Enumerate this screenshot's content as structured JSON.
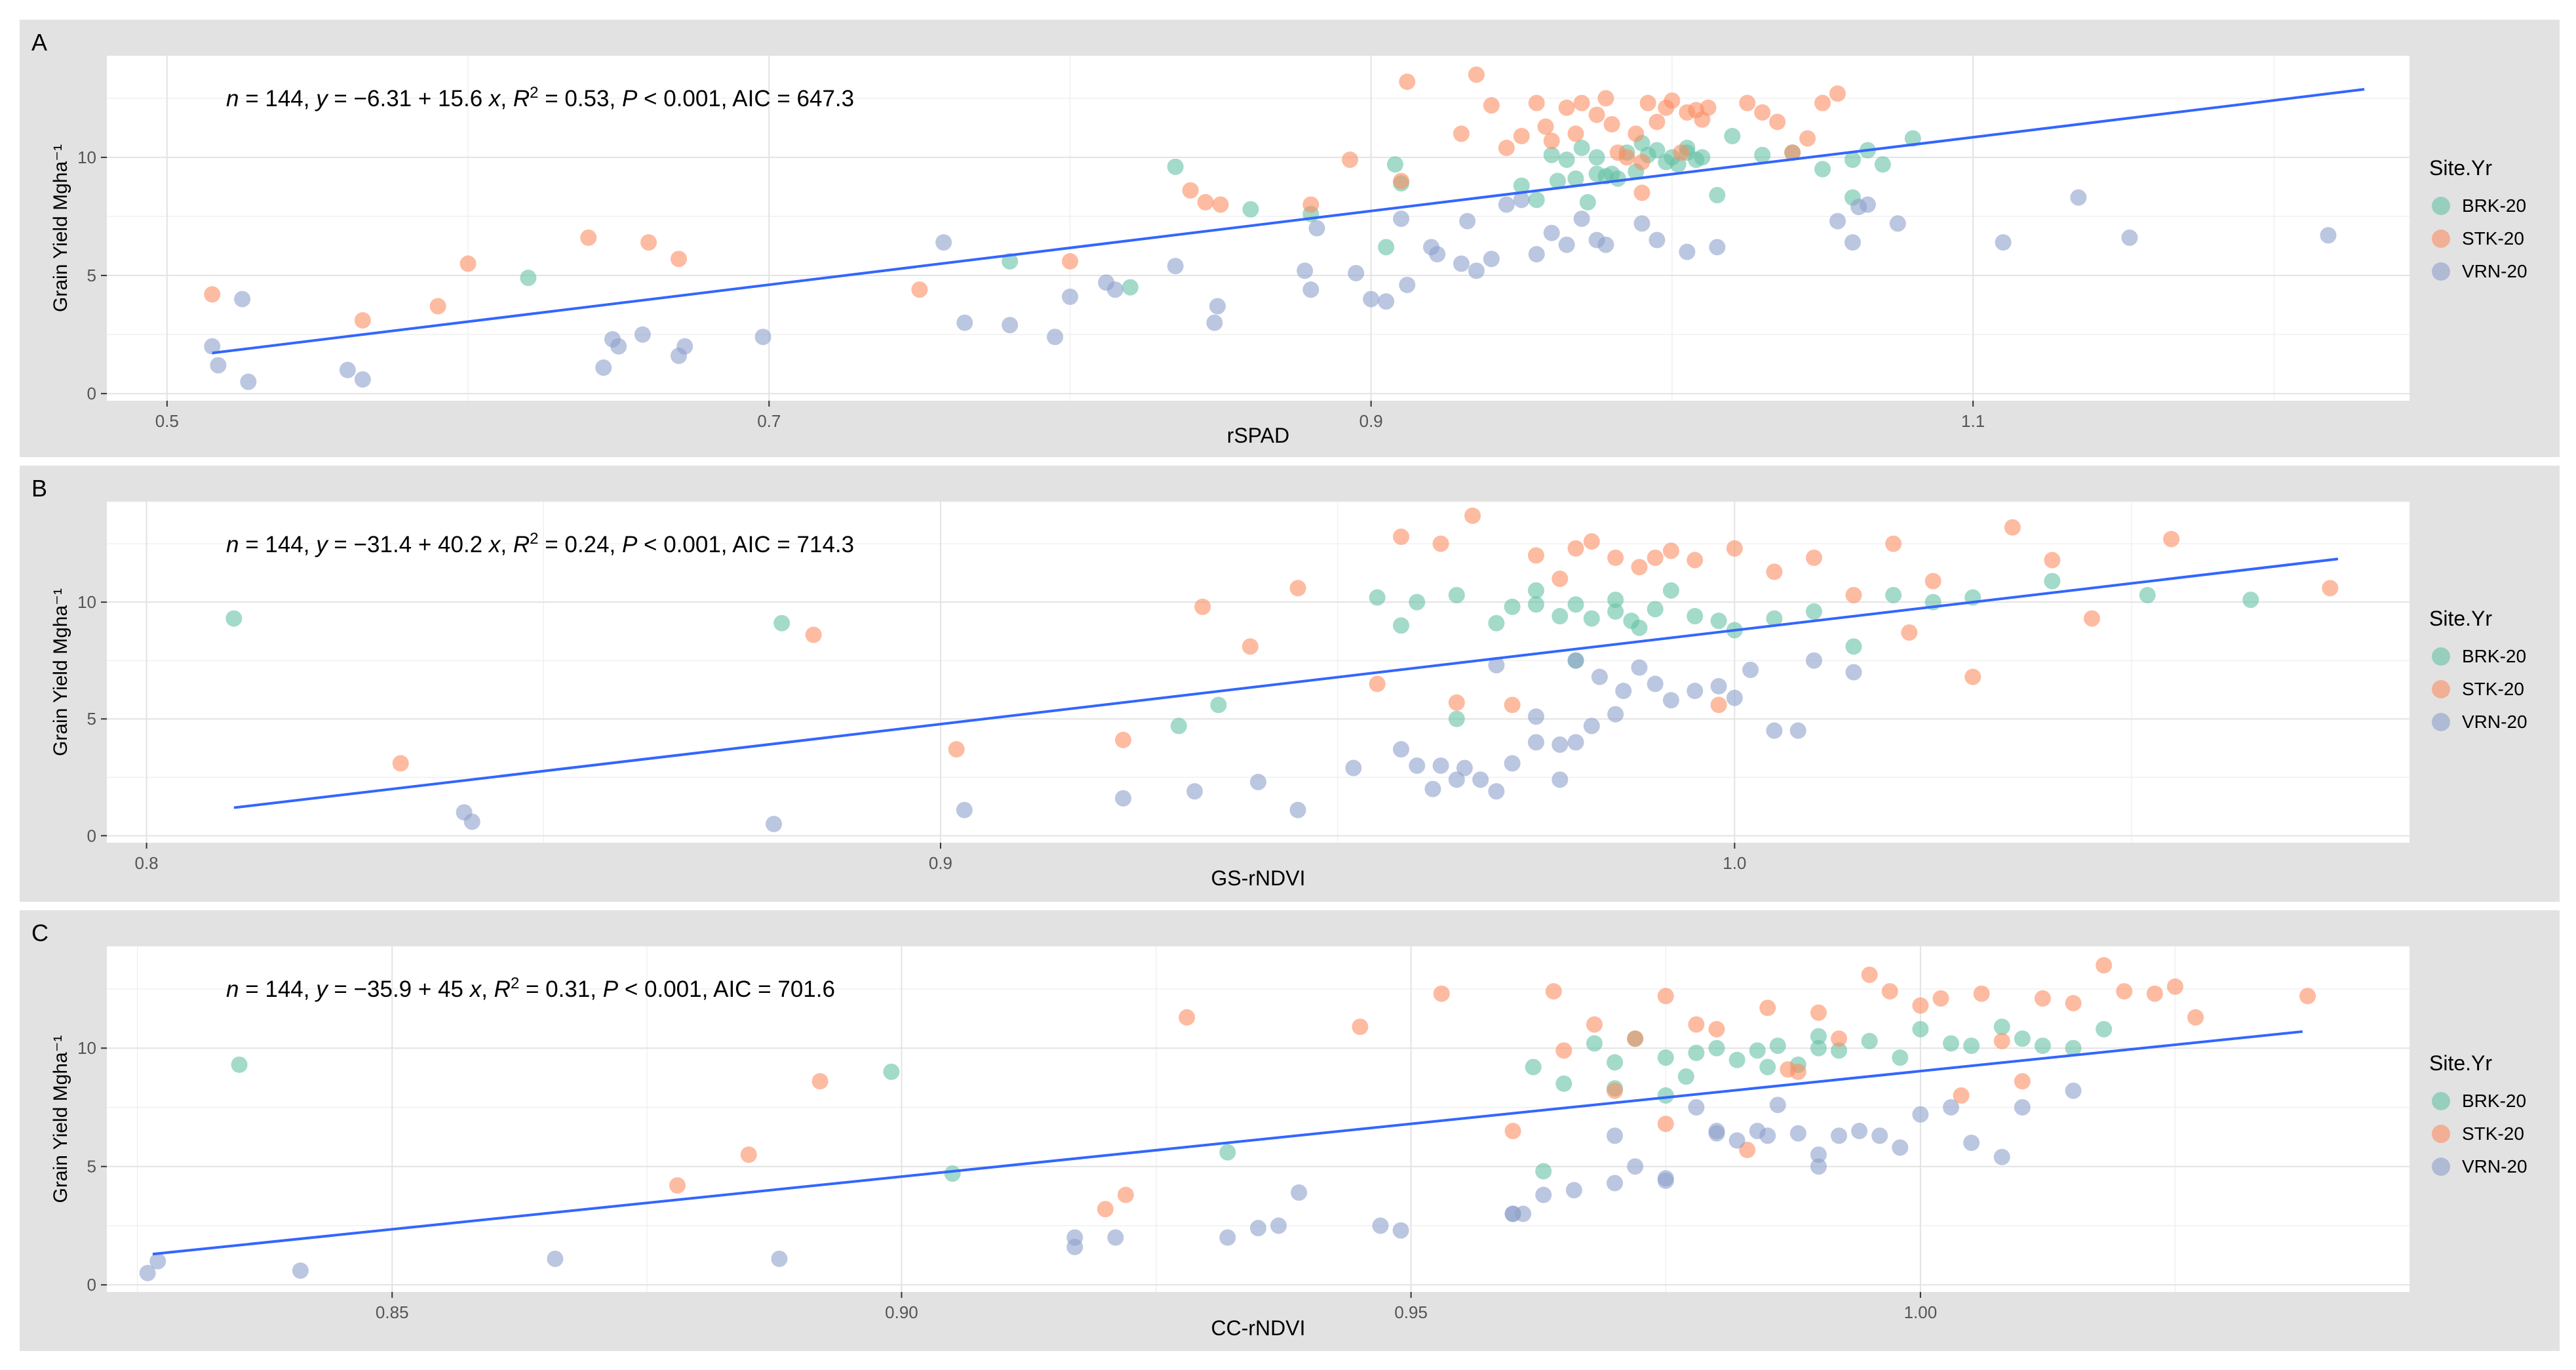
{
  "legend": {
    "title": "Site.Yr",
    "items": [
      {
        "label": "BRK-20",
        "color": "#66c2a5"
      },
      {
        "label": "STK-20",
        "color": "#fc8d62"
      },
      {
        "label": "VRN-20",
        "color": "#8da0cb"
      }
    ]
  },
  "chart_data": [
    {
      "type": "scatter",
      "panel_label": "A",
      "xlabel": "rSPAD",
      "ylabel": "Grain Yield Mgha⁻¹",
      "xlim": [
        0.48,
        1.245
      ],
      "ylim": [
        -0.3,
        14.3
      ],
      "xticks": [
        0.5,
        0.7,
        0.9,
        1.1
      ],
      "xtick_labels": [
        "0.5",
        "0.7",
        "0.9",
        "1.1"
      ],
      "yticks": [
        0,
        5,
        10
      ],
      "grid": true,
      "legend_position": "right",
      "annotation": {
        "n": "144",
        "model": "−6.31 + 15.6 x",
        "r2": "0.53",
        "p": "< 0.001",
        "aic": "647.3"
      },
      "fit_line": {
        "x": [
          0.515,
          1.23
        ],
        "y": [
          1.72,
          12.88
        ]
      },
      "series": [
        {
          "name": "BRK-20",
          "x": [
            0.62,
            0.78,
            0.82,
            0.835,
            0.86,
            0.88,
            0.905,
            0.908,
            0.91,
            0.95,
            0.955,
            0.96,
            0.962,
            0.965,
            0.968,
            0.97,
            0.972,
            0.975,
            0.978,
            0.98,
            0.982,
            0.985,
            0.988,
            0.99,
            0.992,
            0.995,
            0.998,
            1.0,
            1.002,
            1.005,
            1.008,
            1.01,
            1.015,
            1.02,
            1.03,
            1.04,
            1.05,
            1.06,
            1.065,
            1.07,
            1.08,
            1.06,
            1.005,
            0.975
          ],
          "y": [
            4.9,
            5.6,
            4.5,
            9.6,
            7.8,
            7.6,
            6.2,
            9.7,
            8.9,
            8.8,
            8.2,
            10.1,
            9.0,
            9.9,
            9.1,
            10.4,
            8.1,
            10.0,
            9.2,
            9.3,
            9.1,
            10.2,
            9.4,
            10.6,
            10.1,
            10.3,
            9.8,
            10.0,
            9.7,
            10.4,
            9.9,
            10.0,
            8.4,
            10.9,
            10.1,
            10.2,
            9.5,
            9.9,
            10.3,
            9.7,
            10.8,
            8.3,
            10.2,
            9.3
          ]
        },
        {
          "name": "STK-20",
          "x": [
            0.515,
            0.565,
            0.59,
            0.6,
            0.64,
            0.66,
            0.67,
            0.75,
            0.8,
            0.84,
            0.845,
            0.85,
            0.88,
            0.893,
            0.91,
            0.912,
            0.93,
            0.935,
            0.94,
            0.945,
            0.95,
            0.955,
            0.958,
            0.96,
            0.965,
            0.968,
            0.97,
            0.975,
            0.978,
            0.98,
            0.982,
            0.985,
            0.988,
            0.99,
            0.992,
            0.995,
            0.998,
            1.0,
            1.003,
            1.005,
            1.008,
            1.01,
            1.012,
            1.025,
            1.03,
            1.035,
            1.04,
            1.045,
            1.05,
            1.055,
            0.99
          ],
          "y": [
            4.2,
            3.1,
            3.7,
            5.5,
            6.6,
            6.4,
            5.7,
            4.4,
            5.6,
            8.6,
            8.1,
            8.0,
            8.0,
            9.9,
            9.0,
            13.2,
            11.0,
            13.5,
            12.2,
            10.4,
            10.9,
            12.3,
            11.3,
            10.7,
            12.1,
            11.0,
            12.3,
            11.8,
            12.5,
            11.4,
            10.2,
            10.0,
            11.0,
            9.8,
            12.3,
            11.5,
            12.1,
            12.4,
            10.2,
            11.9,
            12.0,
            11.6,
            12.1,
            12.3,
            11.9,
            11.5,
            10.2,
            10.8,
            12.3,
            12.7,
            8.5
          ]
        },
        {
          "name": "VRN-20",
          "x": [
            0.515,
            0.517,
            0.525,
            0.527,
            0.56,
            0.565,
            0.645,
            0.648,
            0.65,
            0.658,
            0.67,
            0.672,
            0.698,
            0.758,
            0.765,
            0.78,
            0.795,
            0.8,
            0.812,
            0.815,
            0.835,
            0.848,
            0.849,
            0.878,
            0.88,
            0.882,
            0.895,
            0.9,
            0.905,
            0.91,
            0.912,
            0.92,
            0.922,
            0.93,
            0.932,
            0.935,
            0.94,
            0.945,
            0.95,
            0.955,
            0.96,
            0.965,
            0.97,
            0.975,
            0.978,
            0.99,
            0.995,
            1.005,
            1.015,
            1.055,
            1.06,
            1.062,
            1.065,
            1.075,
            1.11,
            1.135,
            1.152,
            1.218
          ],
          "y": [
            2.0,
            1.2,
            4.0,
            0.5,
            1.0,
            0.6,
            1.1,
            2.3,
            2.0,
            2.5,
            1.6,
            2.0,
            2.4,
            6.4,
            3.0,
            2.9,
            2.4,
            4.1,
            4.7,
            4.4,
            5.4,
            3.0,
            3.7,
            5.2,
            4.4,
            7.0,
            5.1,
            4.0,
            3.9,
            7.4,
            4.6,
            6.2,
            5.9,
            5.5,
            7.3,
            5.2,
            5.7,
            8.0,
            8.2,
            5.9,
            6.8,
            6.3,
            7.4,
            6.5,
            6.3,
            7.2,
            6.5,
            6.0,
            6.2,
            7.3,
            6.4,
            7.9,
            8.0,
            7.2,
            6.4,
            8.3,
            6.6,
            6.7
          ]
        }
      ]
    },
    {
      "type": "scatter",
      "panel_label": "B",
      "xlabel": "GS-rNDVI",
      "ylabel": "Grain Yield Mgha⁻¹",
      "xlim": [
        0.795,
        1.085
      ],
      "ylim": [
        -0.3,
        14.3
      ],
      "xticks": [
        0.8,
        0.9,
        1.0
      ],
      "xtick_labels": [
        "0.8",
        "0.9",
        "1.0"
      ],
      "yticks": [
        0,
        5,
        10
      ],
      "grid": true,
      "legend_position": "right",
      "annotation": {
        "n": "144",
        "model": "−31.4 + 40.2 x",
        "r2": "0.24",
        "p": "< 0.001",
        "aic": "714.3"
      },
      "fit_line": {
        "x": [
          0.811,
          1.076
        ],
        "y": [
          1.2,
          11.85
        ]
      },
      "series": [
        {
          "name": "BRK-20",
          "x": [
            0.811,
            0.88,
            0.93,
            0.935,
            0.955,
            0.958,
            0.965,
            0.97,
            0.972,
            0.975,
            0.978,
            0.98,
            0.982,
            0.985,
            0.987,
            0.99,
            0.992,
            0.995,
            0.998,
            1.0,
            1.005,
            1.01,
            1.015,
            1.02,
            1.025,
            1.03,
            1.04,
            1.052,
            1.065,
            0.96,
            0.965,
            0.975,
            0.98,
            0.985,
            0.988
          ],
          "y": [
            9.3,
            9.1,
            4.7,
            5.6,
            10.2,
            9.0,
            10.3,
            9.1,
            9.8,
            10.5,
            9.4,
            9.9,
            9.3,
            10.1,
            9.2,
            9.7,
            10.5,
            9.4,
            9.2,
            8.8,
            9.3,
            9.6,
            8.1,
            10.3,
            10.0,
            10.2,
            10.9,
            10.3,
            10.1,
            10.0,
            5.0,
            9.9,
            7.5,
            9.6,
            8.9
          ]
        },
        {
          "name": "STK-20",
          "x": [
            0.832,
            0.884,
            0.902,
            0.923,
            0.933,
            0.939,
            0.945,
            0.955,
            0.958,
            0.963,
            0.965,
            0.967,
            0.972,
            0.975,
            0.978,
            0.98,
            0.982,
            0.985,
            0.988,
            0.99,
            0.992,
            0.995,
            0.998,
            1.0,
            1.005,
            1.01,
            1.015,
            1.02,
            1.022,
            1.025,
            1.03,
            1.035,
            1.04,
            1.045,
            1.055,
            1.075
          ],
          "y": [
            3.1,
            8.6,
            3.7,
            4.1,
            9.8,
            8.1,
            10.6,
            6.5,
            12.8,
            12.5,
            5.7,
            13.7,
            5.6,
            12.0,
            11.0,
            12.3,
            12.6,
            11.9,
            11.5,
            11.9,
            12.2,
            11.8,
            5.6,
            12.3,
            11.3,
            11.9,
            10.3,
            12.5,
            8.7,
            10.9,
            6.8,
            13.2,
            11.8,
            9.3,
            12.7,
            10.6
          ]
        },
        {
          "name": "VRN-20",
          "x": [
            0.84,
            0.841,
            0.879,
            0.903,
            0.923,
            0.932,
            0.94,
            0.945,
            0.952,
            0.958,
            0.96,
            0.962,
            0.965,
            0.968,
            0.97,
            0.972,
            0.975,
            0.978,
            0.98,
            0.982,
            0.985,
            0.988,
            0.99,
            0.992,
            0.995,
            0.998,
            1.0,
            1.002,
            1.005,
            1.008,
            1.01,
            1.015,
            0.963,
            0.966,
            0.97,
            0.975,
            0.978,
            0.98,
            0.983,
            0.986
          ],
          "y": [
            1.0,
            0.6,
            0.5,
            1.1,
            1.6,
            1.9,
            2.3,
            1.1,
            2.9,
            3.7,
            3.0,
            2.0,
            2.4,
            2.4,
            1.9,
            3.1,
            5.1,
            2.4,
            4.0,
            4.7,
            5.2,
            7.2,
            6.5,
            5.8,
            6.2,
            6.4,
            5.9,
            7.1,
            4.5,
            4.5,
            7.5,
            7.0,
            3.0,
            2.9,
            7.3,
            4.0,
            3.9,
            7.5,
            6.8,
            6.2
          ]
        }
      ]
    },
    {
      "type": "scatter",
      "panel_label": "C",
      "xlabel": "CC-rNDVI",
      "ylabel": "Grain Yield Mgha⁻¹",
      "xlim": [
        0.822,
        1.048
      ],
      "ylim": [
        -0.3,
        14.3
      ],
      "xticks": [
        0.85,
        0.9,
        0.95,
        1.0
      ],
      "xtick_labels": [
        "0.85",
        "0.90",
        "0.95",
        "1.00"
      ],
      "yticks": [
        0,
        5,
        10
      ],
      "grid": true,
      "legend_position": "right",
      "annotation": {
        "n": "144",
        "model": "−35.9 + 45 x",
        "r2": "0.31",
        "p": "< 0.001",
        "aic": "701.6"
      },
      "fit_line": {
        "x": [
          0.8265,
          1.0375
        ],
        "y": [
          1.3,
          10.7
        ]
      },
      "series": [
        {
          "name": "BRK-20",
          "x": [
            0.835,
            0.899,
            0.905,
            0.932,
            0.962,
            0.965,
            0.968,
            0.97,
            0.972,
            0.975,
            0.977,
            0.978,
            0.98,
            0.982,
            0.984,
            0.986,
            0.988,
            0.99,
            0.992,
            0.995,
            0.998,
            1.0,
            1.003,
            1.005,
            1.008,
            1.01,
            1.012,
            1.015,
            1.018,
            0.963,
            0.97,
            0.975,
            0.985,
            0.99
          ],
          "y": [
            9.3,
            9.0,
            4.7,
            5.6,
            9.2,
            8.5,
            10.2,
            8.3,
            10.4,
            9.6,
            8.8,
            9.8,
            10.0,
            9.5,
            9.9,
            10.1,
            9.3,
            10.5,
            9.9,
            10.3,
            9.6,
            10.8,
            10.2,
            10.1,
            10.9,
            10.4,
            10.1,
            10.0,
            10.8,
            4.8,
            9.4,
            8.0,
            9.2,
            10.0
          ]
        },
        {
          "name": "STK-20",
          "x": [
            0.878,
            0.885,
            0.892,
            0.92,
            0.922,
            0.928,
            0.945,
            0.953,
            0.96,
            0.964,
            0.965,
            0.968,
            0.97,
            0.972,
            0.975,
            0.975,
            0.978,
            0.98,
            0.983,
            0.985,
            0.987,
            0.99,
            0.992,
            0.995,
            0.997,
            1.0,
            1.002,
            1.004,
            1.006,
            1.008,
            1.01,
            1.012,
            1.015,
            1.018,
            1.02,
            1.023,
            1.025,
            1.027,
            1.038,
            0.988
          ],
          "y": [
            4.2,
            5.5,
            8.6,
            3.2,
            3.8,
            11.3,
            10.9,
            12.3,
            6.5,
            12.4,
            9.9,
            11.0,
            8.2,
            10.4,
            12.2,
            6.8,
            11.0,
            10.8,
            5.7,
            11.7,
            9.1,
            11.5,
            10.4,
            13.1,
            12.4,
            11.8,
            12.1,
            8.0,
            12.3,
            10.3,
            8.6,
            12.1,
            11.9,
            13.5,
            12.4,
            12.3,
            12.6,
            11.3,
            12.2,
            9.0
          ]
        },
        {
          "name": "VRN-20",
          "x": [
            0.826,
            0.827,
            0.841,
            0.866,
            0.888,
            0.917,
            0.917,
            0.921,
            0.932,
            0.935,
            0.937,
            0.939,
            0.947,
            0.949,
            0.96,
            0.961,
            0.963,
            0.966,
            0.97,
            0.972,
            0.975,
            0.978,
            0.98,
            0.982,
            0.984,
            0.986,
            0.988,
            0.99,
            0.992,
            0.994,
            0.996,
            0.998,
            1.0,
            1.003,
            1.005,
            1.008,
            1.01,
            1.015,
            0.96,
            0.97,
            0.975,
            0.98,
            0.985,
            0.99
          ],
          "y": [
            0.5,
            1.0,
            0.6,
            1.1,
            1.1,
            1.6,
            2.0,
            2.0,
            2.0,
            2.4,
            2.5,
            3.9,
            2.5,
            2.3,
            3.0,
            3.0,
            3.8,
            4.0,
            6.3,
            5.0,
            4.5,
            7.5,
            6.4,
            6.1,
            6.5,
            7.6,
            6.4,
            5.5,
            6.3,
            6.5,
            6.3,
            5.8,
            7.2,
            7.5,
            6.0,
            5.4,
            7.5,
            8.2,
            3.0,
            4.3,
            4.4,
            6.5,
            6.3,
            5.0
          ]
        }
      ]
    }
  ]
}
